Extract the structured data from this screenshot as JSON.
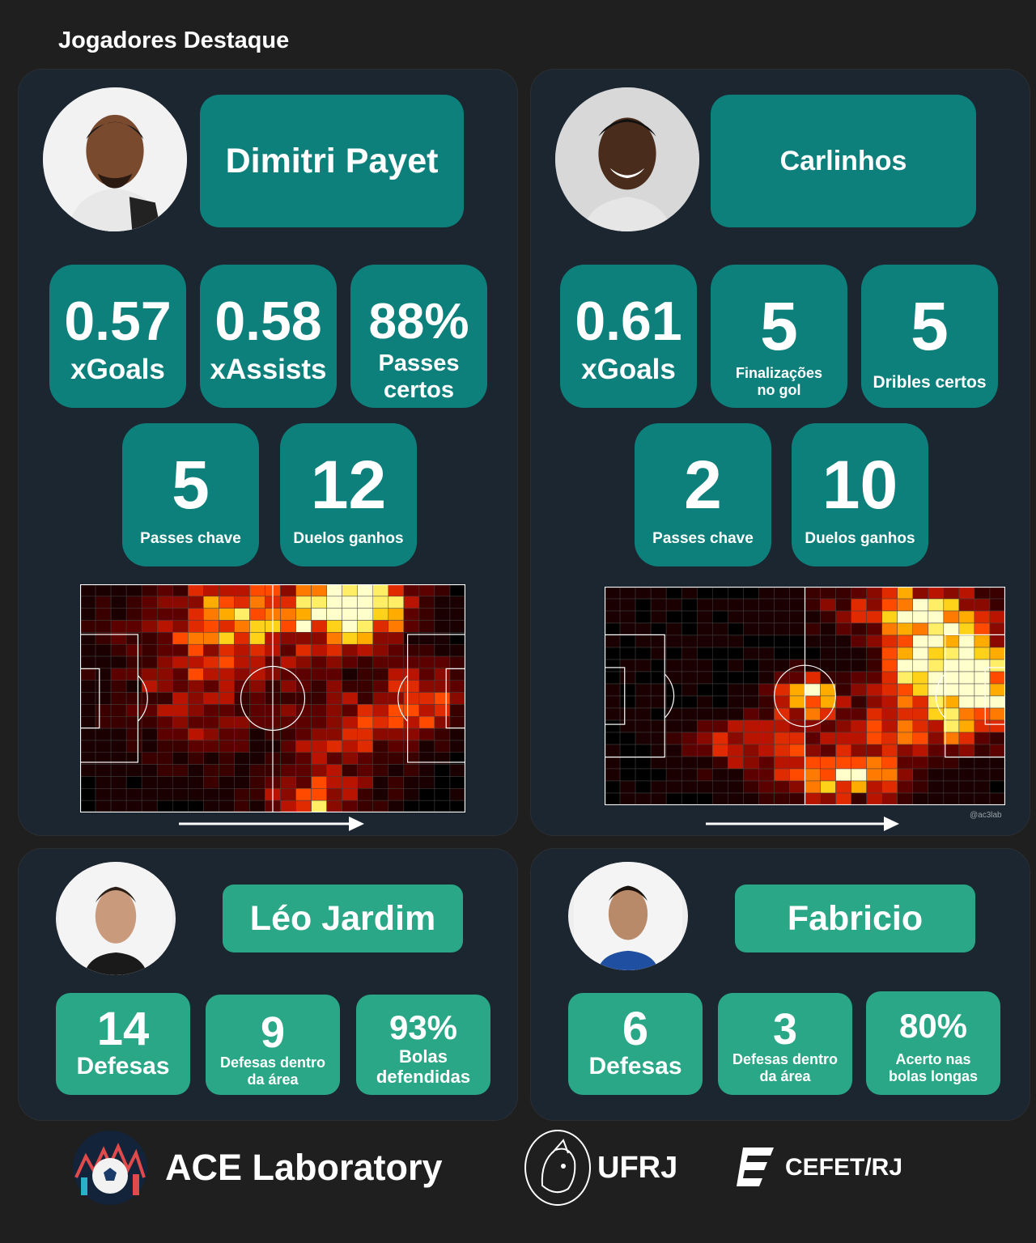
{
  "page_title": "Jogadores Destaque",
  "players": [
    {
      "name": "Dimitri Payet",
      "stats": [
        {
          "value": "0.57",
          "label": "xGoals"
        },
        {
          "value": "0.58",
          "label": "xAssists"
        },
        {
          "value": "88%",
          "label": "Passes certos"
        },
        {
          "value": "5",
          "label": "Passes chave"
        },
        {
          "value": "12",
          "label": "Duelos ganhos"
        }
      ]
    },
    {
      "name": "Carlinhos",
      "stats": [
        {
          "value": "0.61",
          "label": "xGoals"
        },
        {
          "value": "5",
          "label": "Finalizações no gol"
        },
        {
          "value": "5",
          "label": "Dribles certos"
        },
        {
          "value": "2",
          "label": "Passes chave"
        },
        {
          "value": "10",
          "label": "Duelos ganhos"
        }
      ],
      "watermark": "@ac3lab"
    }
  ],
  "goalkeepers": [
    {
      "name": "Léo Jardim",
      "stats": [
        {
          "value": "14",
          "label": "Defesas"
        },
        {
          "value": "9",
          "label": "Defesas dentro da área"
        },
        {
          "value": "93%",
          "label": "Bolas defendidas"
        }
      ]
    },
    {
      "name": "Fabricio",
      "stats": [
        {
          "value": "6",
          "label": "Defesas"
        },
        {
          "value": "3",
          "label": "Defesas dentro da área"
        },
        {
          "value": "80%",
          "label": "Acerto nas bolas longas"
        }
      ]
    }
  ],
  "footer": {
    "lab_name": "ACE Laboratory",
    "ufrj": "UFRJ",
    "cefet": "CEFET/RJ"
  },
  "colors": {
    "teal": "#0e807b",
    "green": "#2aa786",
    "card": "#1b2630",
    "background": "#1f1f1f"
  }
}
